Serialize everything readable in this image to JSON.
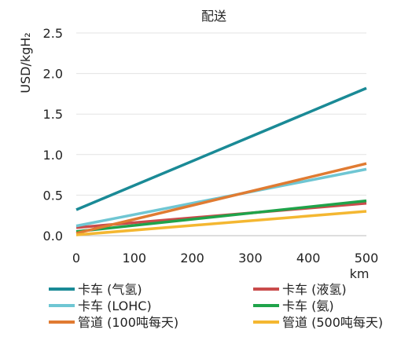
{
  "chart_data": {
    "type": "line",
    "title": "配送",
    "xlabel": "km",
    "ylabel": "USD/kgH₂",
    "xlim": [
      0,
      500
    ],
    "ylim": [
      0,
      2.5
    ],
    "x_ticks": [
      "0",
      "100",
      "200",
      "300",
      "400",
      "500"
    ],
    "y_ticks": [
      "0.0",
      "0.5",
      "1.0",
      "1.5",
      "2.0",
      "2.5"
    ],
    "grid": "horizontal",
    "legend_position": "bottom",
    "series": [
      {
        "name": "卡车 (气氢)",
        "color": "#1a8a96",
        "points": [
          [
            0,
            0.32
          ],
          [
            500,
            1.82
          ]
        ]
      },
      {
        "name": "卡车 (液氢)",
        "color": "#c94b4b",
        "points": [
          [
            0,
            0.1
          ],
          [
            500,
            0.4
          ]
        ]
      },
      {
        "name": "卡车 (LOHC)",
        "color": "#6fc6d3",
        "points": [
          [
            0,
            0.12
          ],
          [
            500,
            0.82
          ]
        ]
      },
      {
        "name": "卡车 (氨)",
        "color": "#1fa34a",
        "points": [
          [
            0,
            0.05
          ],
          [
            500,
            0.43
          ]
        ]
      },
      {
        "name": "管道 (100吨每天)",
        "color": "#e07b32",
        "points": [
          [
            0,
            0.03
          ],
          [
            500,
            0.89
          ]
        ]
      },
      {
        "name": "管道 (500吨每天)",
        "color": "#f4b731",
        "points": [
          [
            0,
            0.01
          ],
          [
            500,
            0.3
          ]
        ]
      }
    ]
  }
}
